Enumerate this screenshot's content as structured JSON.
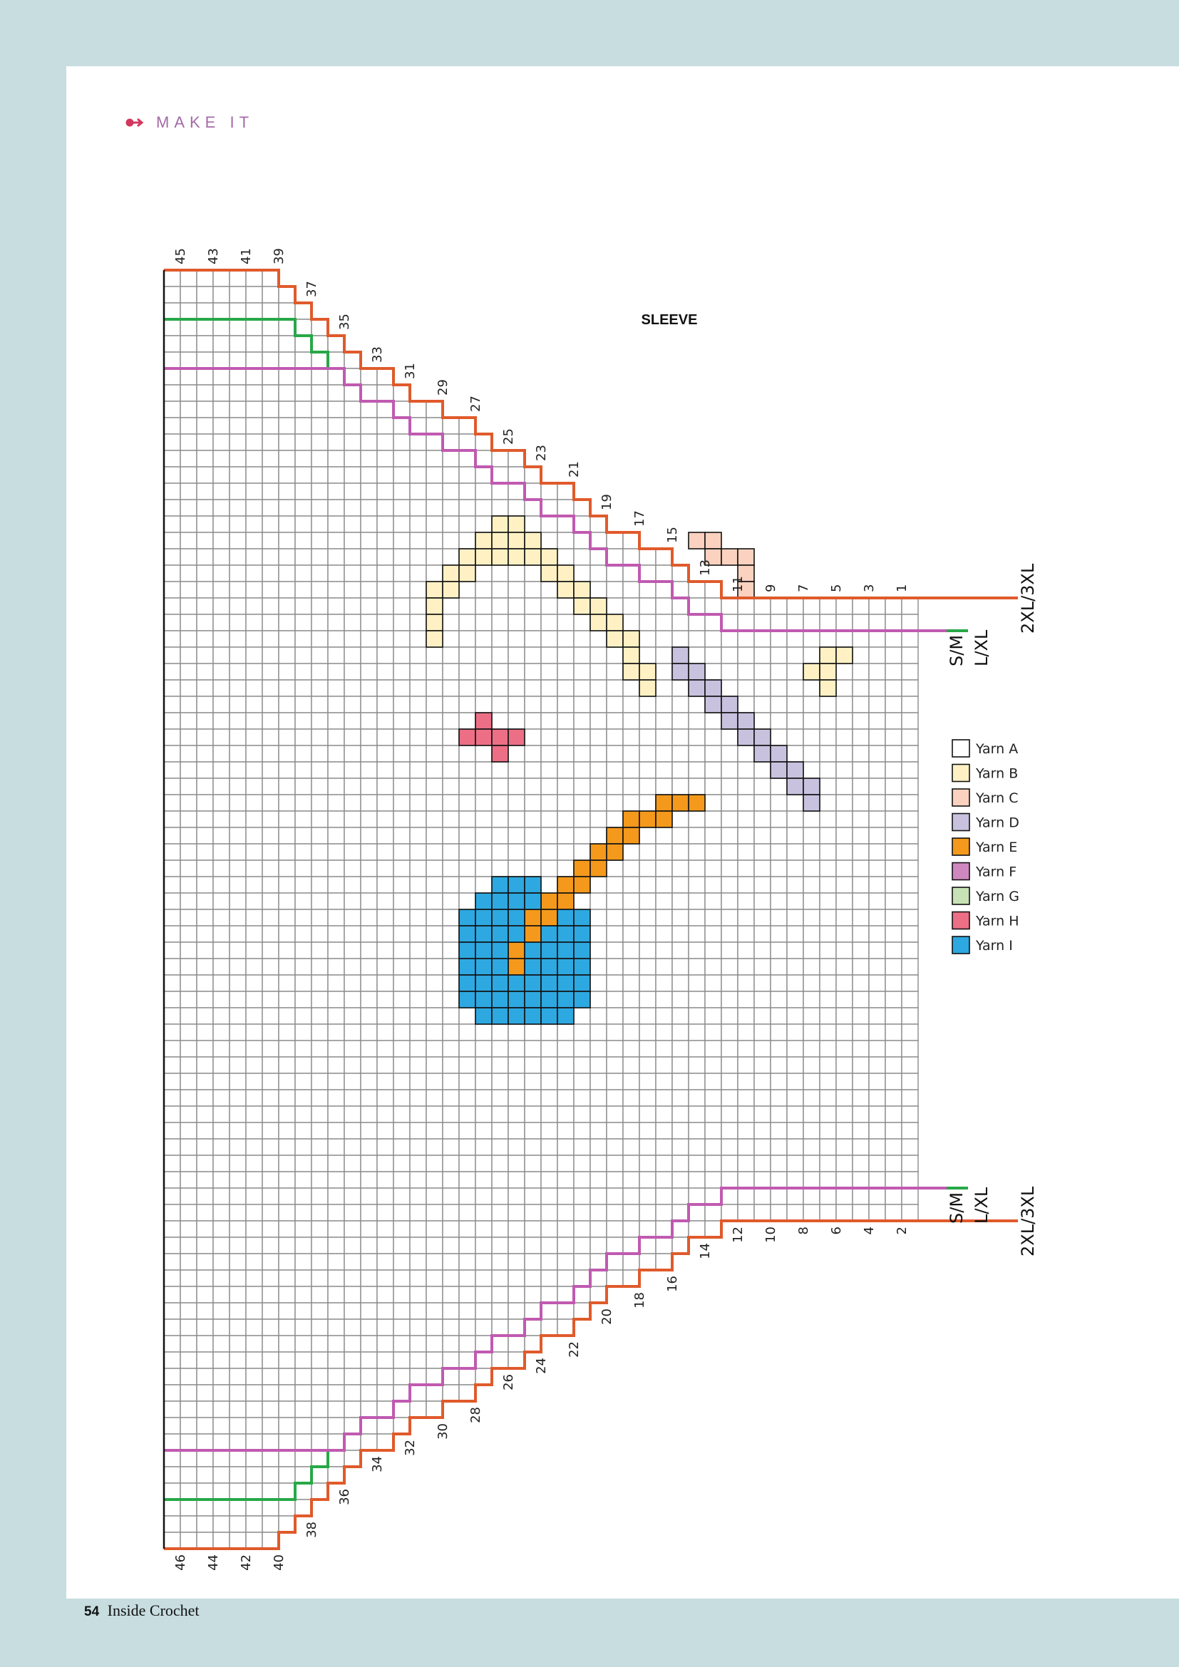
{
  "header": {
    "title": "MAKE IT"
  },
  "chart_title": "SLEEVE",
  "footer": {
    "page_number": "54",
    "magazine": "Inside Crochet"
  },
  "chart_data": {
    "type": "crochet-colorwork-chart",
    "grid": {
      "rows": 46,
      "columns": 46,
      "grid_color": "#8c8c8c",
      "cell_fill": "#ffffff"
    },
    "top_row_labels": [
      "45",
      "43",
      "41",
      "39",
      "37",
      "35",
      "33",
      "31",
      "29",
      "27",
      "25",
      "23",
      "21",
      "19",
      "17",
      "15",
      "13",
      "11",
      "9",
      "7",
      "5",
      "3",
      "1"
    ],
    "bottom_row_labels": [
      "46",
      "44",
      "42",
      "40",
      "38",
      "36",
      "34",
      "32",
      "30",
      "28",
      "26",
      "24",
      "22",
      "20",
      "18",
      "16",
      "14",
      "12",
      "10",
      "8",
      "6",
      "4",
      "2"
    ],
    "sizes": [
      {
        "label": "2XL/3XL",
        "color": "#e05a2b",
        "top_steps": [
          0,
          0,
          0,
          0,
          0,
          0,
          0,
          1,
          2,
          3,
          4,
          5,
          6,
          6,
          7,
          8,
          8,
          9,
          9,
          10,
          11,
          11,
          12,
          13,
          13,
          14,
          15,
          16,
          16,
          17,
          17,
          18,
          19,
          19,
          20,
          20,
          20,
          20,
          20,
          20,
          20,
          20,
          20,
          20,
          20,
          20
        ]
      },
      {
        "label": "L/XL",
        "color": "#27a847",
        "top_steps": [
          3,
          3,
          3,
          3,
          3,
          3,
          3,
          3,
          4,
          5,
          6,
          7,
          8,
          8,
          9,
          10,
          10,
          11,
          11,
          12,
          13,
          13,
          14,
          15,
          15,
          16,
          17,
          18,
          18,
          19,
          19,
          20,
          21,
          21,
          22,
          22,
          22,
          22,
          22,
          22,
          22,
          22,
          22,
          22,
          22,
          22
        ]
      },
      {
        "label": "S/M",
        "color": "#c05ab0",
        "top_steps": [
          6,
          6,
          6,
          6,
          6,
          6,
          6,
          6,
          6,
          6,
          6,
          7,
          8,
          8,
          9,
          10,
          10,
          11,
          11,
          12,
          13,
          13,
          14,
          15,
          15,
          16,
          17,
          18,
          18,
          19,
          19,
          20,
          21,
          21,
          22,
          22,
          22,
          22,
          22,
          22,
          22,
          22,
          22,
          22,
          22,
          22
        ]
      }
    ],
    "legend": [
      {
        "label": "Yarn A",
        "color": "#ffffff"
      },
      {
        "label": "Yarn B",
        "color": "#fff1c4"
      },
      {
        "label": "Yarn C",
        "color": "#fbd2bf"
      },
      {
        "label": "Yarn D",
        "color": "#c8c2df"
      },
      {
        "label": "Yarn E",
        "color": "#f4991c"
      },
      {
        "label": "Yarn F",
        "color": "#cf88bf"
      },
      {
        "label": "Yarn G",
        "color": "#c7e2b5"
      },
      {
        "label": "Yarn H",
        "color": "#ec6f86"
      },
      {
        "label": "Yarn I",
        "color": "#2ea8e0"
      }
    ],
    "motifs": [
      {
        "yarn": "Yarn B",
        "cells": [
          [
            15,
            20
          ],
          [
            15,
            21
          ],
          [
            16,
            19
          ],
          [
            16,
            20
          ],
          [
            16,
            21
          ],
          [
            16,
            22
          ],
          [
            17,
            18
          ],
          [
            17,
            19
          ],
          [
            17,
            20
          ],
          [
            17,
            21
          ],
          [
            17,
            22
          ],
          [
            17,
            23
          ],
          [
            18,
            17
          ],
          [
            18,
            18
          ],
          [
            18,
            23
          ],
          [
            18,
            24
          ],
          [
            19,
            16
          ],
          [
            19,
            17
          ],
          [
            19,
            24
          ],
          [
            19,
            25
          ],
          [
            20,
            16
          ],
          [
            20,
            25
          ],
          [
            20,
            26
          ],
          [
            21,
            16
          ],
          [
            21,
            26
          ],
          [
            21,
            27
          ],
          [
            22,
            16
          ],
          [
            22,
            27
          ],
          [
            22,
            28
          ],
          [
            23,
            28
          ],
          [
            24,
            28
          ],
          [
            24,
            29
          ],
          [
            25,
            29
          ]
        ]
      },
      {
        "yarn": "Yarn C",
        "cells": [
          [
            16,
            32
          ],
          [
            16,
            33
          ],
          [
            17,
            33
          ],
          [
            17,
            34
          ],
          [
            17,
            35
          ],
          [
            18,
            35
          ],
          [
            19,
            35
          ]
        ]
      },
      {
        "yarn": "Yarn B",
        "cells": [
          [
            23,
            40
          ],
          [
            23,
            41
          ],
          [
            24,
            39
          ],
          [
            24,
            40
          ],
          [
            25,
            40
          ]
        ]
      },
      {
        "yarn": "Yarn D",
        "cells": [
          [
            23,
            31
          ],
          [
            24,
            31
          ],
          [
            24,
            32
          ],
          [
            25,
            32
          ],
          [
            25,
            33
          ],
          [
            26,
            33
          ],
          [
            26,
            34
          ],
          [
            27,
            34
          ],
          [
            27,
            35
          ],
          [
            28,
            35
          ],
          [
            28,
            36
          ],
          [
            29,
            36
          ],
          [
            29,
            37
          ],
          [
            30,
            37
          ],
          [
            30,
            38
          ],
          [
            31,
            38
          ],
          [
            31,
            39
          ],
          [
            32,
            39
          ]
        ]
      },
      {
        "yarn": "Yarn H",
        "cells": [
          [
            27,
            19
          ],
          [
            28,
            18
          ],
          [
            28,
            19
          ],
          [
            28,
            20
          ],
          [
            28,
            21
          ],
          [
            29,
            20
          ]
        ]
      },
      {
        "yarn": "Yarn E",
        "cells": [
          [
            32,
            30
          ],
          [
            32,
            31
          ],
          [
            32,
            32
          ],
          [
            33,
            28
          ],
          [
            33,
            29
          ],
          [
            33,
            30
          ],
          [
            34,
            27
          ],
          [
            34,
            28
          ],
          [
            35,
            26
          ],
          [
            35,
            27
          ],
          [
            36,
            25
          ],
          [
            36,
            26
          ],
          [
            37,
            24
          ],
          [
            37,
            25
          ],
          [
            38,
            23
          ],
          [
            38,
            24
          ],
          [
            39,
            22
          ],
          [
            39,
            23
          ],
          [
            40,
            22
          ],
          [
            41,
            21
          ],
          [
            42,
            21
          ]
        ]
      },
      {
        "yarn": "Yarn I",
        "cells": [
          [
            37,
            20
          ],
          [
            37,
            21
          ],
          [
            37,
            22
          ],
          [
            38,
            19
          ],
          [
            38,
            20
          ],
          [
            38,
            21
          ],
          [
            38,
            22
          ],
          [
            39,
            18
          ],
          [
            39,
            19
          ],
          [
            39,
            20
          ],
          [
            39,
            21
          ],
          [
            39,
            24
          ],
          [
            39,
            25
          ],
          [
            40,
            18
          ],
          [
            40,
            19
          ],
          [
            40,
            20
          ],
          [
            40,
            21
          ],
          [
            40,
            23
          ],
          [
            40,
            24
          ],
          [
            40,
            25
          ],
          [
            41,
            18
          ],
          [
            41,
            19
          ],
          [
            41,
            20
          ],
          [
            41,
            22
          ],
          [
            41,
            23
          ],
          [
            41,
            24
          ],
          [
            41,
            25
          ],
          [
            42,
            18
          ],
          [
            42,
            19
          ],
          [
            42,
            20
          ],
          [
            42,
            22
          ],
          [
            42,
            23
          ],
          [
            42,
            24
          ],
          [
            42,
            25
          ],
          [
            43,
            18
          ],
          [
            43,
            19
          ],
          [
            43,
            20
          ],
          [
            43,
            21
          ],
          [
            43,
            22
          ],
          [
            43,
            23
          ],
          [
            43,
            24
          ],
          [
            43,
            25
          ],
          [
            44,
            18
          ],
          [
            44,
            19
          ],
          [
            44,
            20
          ],
          [
            44,
            21
          ],
          [
            44,
            22
          ],
          [
            44,
            23
          ],
          [
            44,
            24
          ],
          [
            44,
            25
          ],
          [
            45,
            19
          ],
          [
            45,
            20
          ],
          [
            45,
            21
          ],
          [
            45,
            22
          ],
          [
            45,
            23
          ],
          [
            45,
            24
          ]
        ]
      }
    ]
  }
}
